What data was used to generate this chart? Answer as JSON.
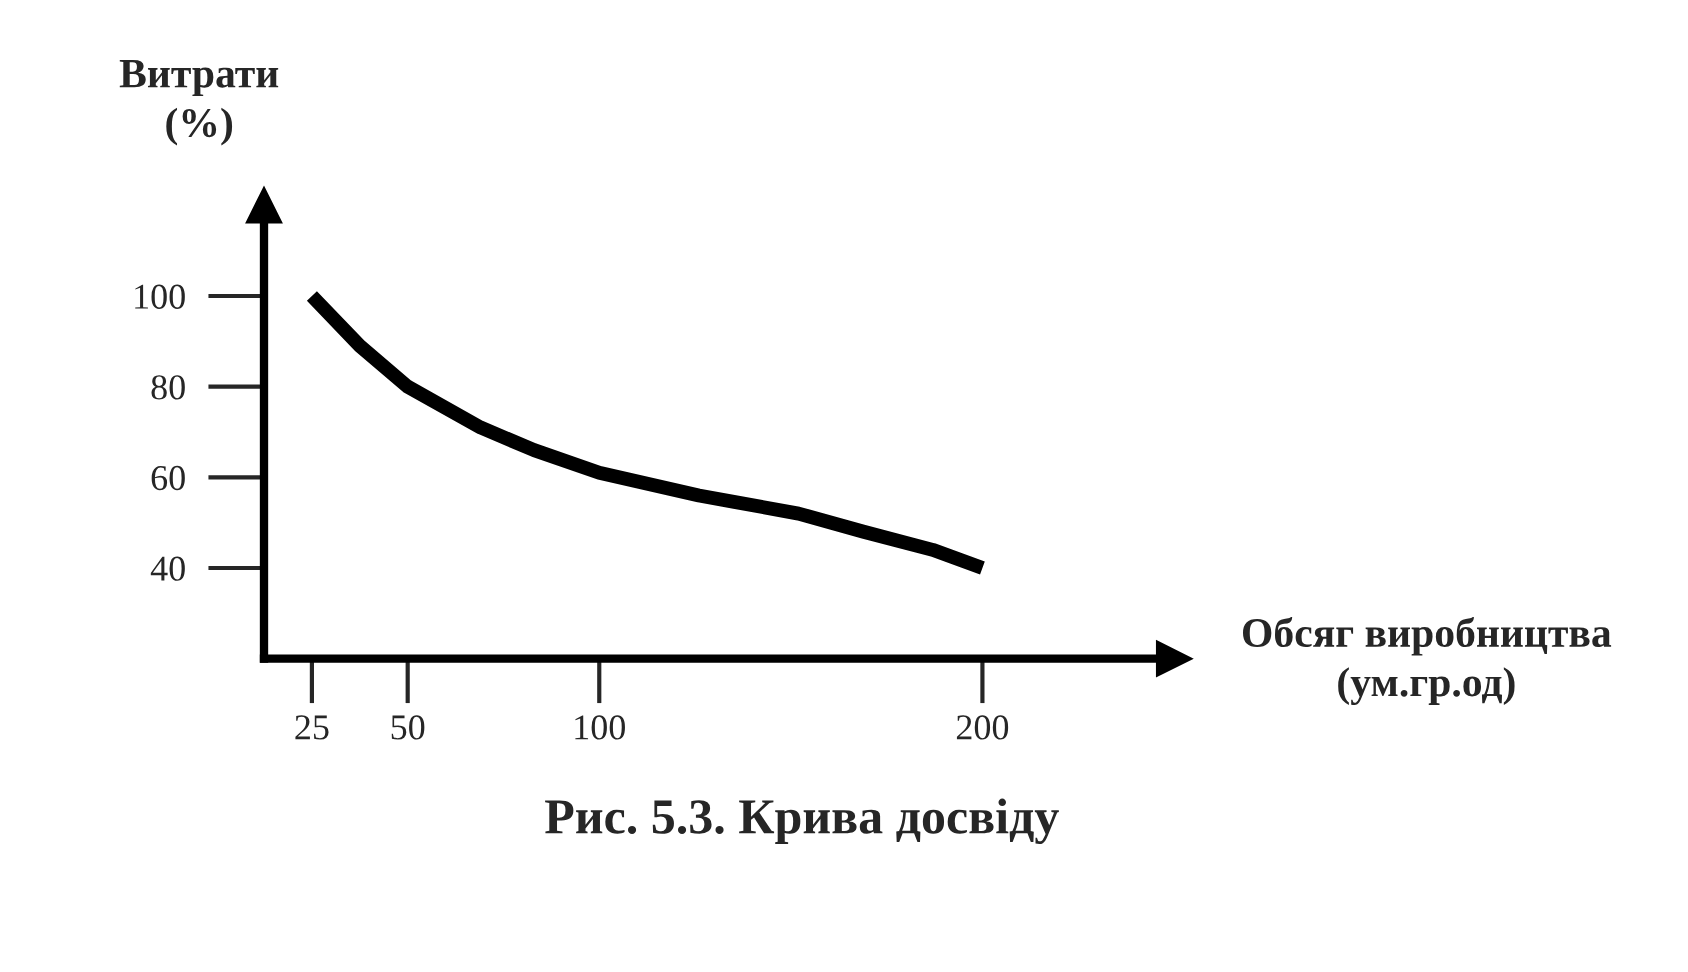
{
  "chart_data": {
    "type": "line",
    "title": "Рис. 5.3. Крива досвіду",
    "xlabel": "Обсяг виробництва\n(ум.гр.од)",
    "ylabel": "Витрати\n(%)",
    "x": [
      25,
      37.5,
      50,
      69,
      83,
      100,
      126,
      152,
      169,
      187,
      200
    ],
    "series": [
      {
        "color": "#000000",
        "values": [
          100,
          89,
          80,
          71,
          66,
          61,
          56,
          52,
          48,
          44,
          40
        ]
      }
    ],
    "xlim": [
      12.5,
      250
    ],
    "xticks": [
      25,
      50,
      100,
      200
    ],
    "ylim": [
      20,
      120
    ],
    "yticks": [
      40,
      60,
      80,
      100
    ],
    "grid": false,
    "legend": false,
    "marker": "none",
    "line_style": "solid"
  }
}
